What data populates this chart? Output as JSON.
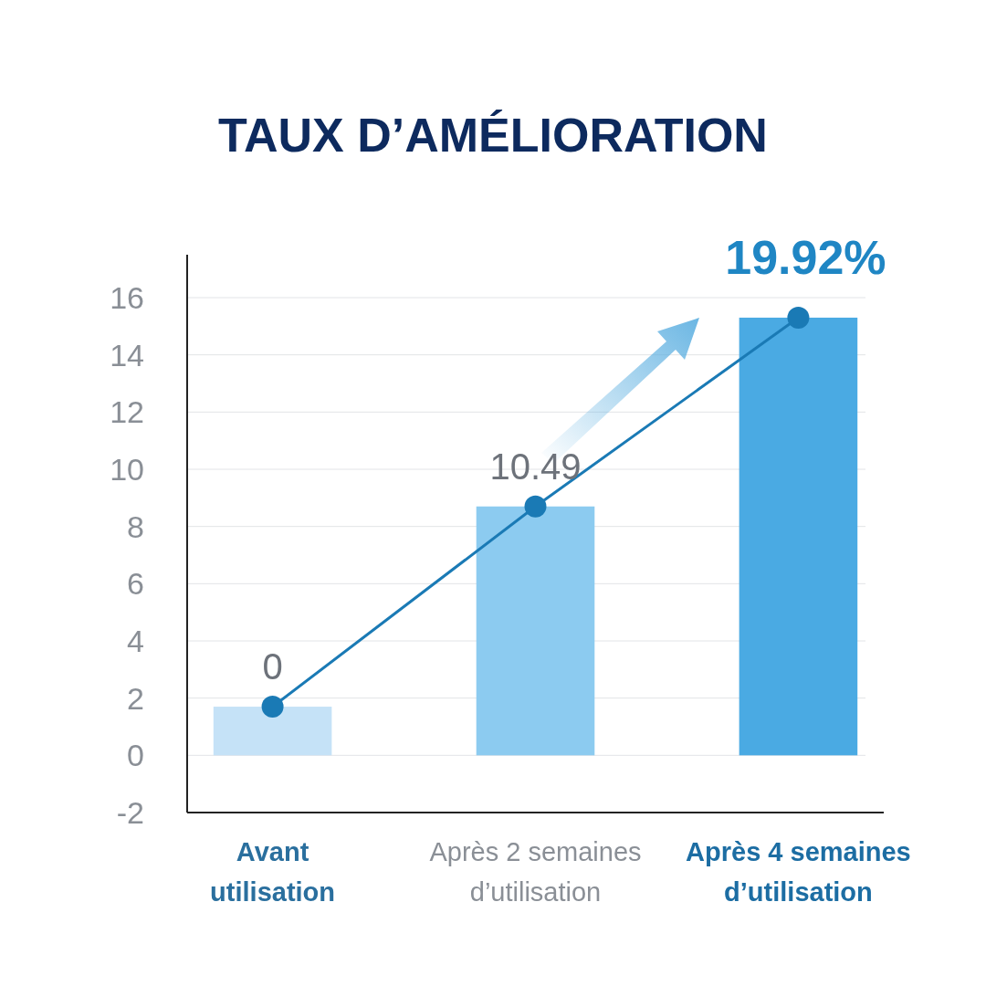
{
  "chart_data": {
    "type": "bar",
    "title": "TAUX D’AMÉLIORATION",
    "categories": [
      "Avant utilisation",
      "Après 2 semaines d’utilisation",
      "Après 4 semaines d’utilisation"
    ],
    "series": [
      {
        "values": [
          1.7,
          8.7,
          15.3
        ],
        "colors": [
          "#c5e2f7",
          "#8ccbf0",
          "#4aaae3"
        ]
      },
      {
        "type": "line",
        "values": [
          1.7,
          8.7,
          15.3
        ],
        "color": "#1a7ab5",
        "marker": "circle"
      }
    ],
    "annotations": [
      {
        "text": "0",
        "x": "Avant utilisation",
        "y": 1.7
      },
      {
        "text": "10.49",
        "x": "Après 2 semaines d’utilisation",
        "y": 8.7
      },
      {
        "text": "19.92%",
        "x": "Après 4 semaines d’utilisation",
        "y": 15.3
      }
    ],
    "ylim": [
      -2,
      17.5
    ],
    "yticks": [
      -2,
      0,
      2,
      4,
      6,
      8,
      10,
      12,
      14,
      16
    ],
    "grid": "y"
  }
}
